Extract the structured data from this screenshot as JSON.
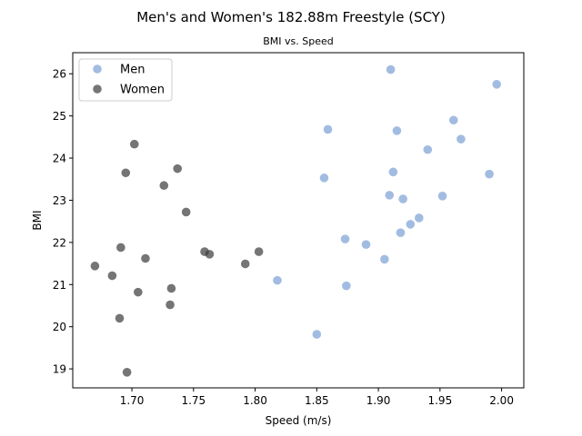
{
  "chart_data": {
    "type": "scatter",
    "title": "Men's and Women's 182.88m Freestyle (SCY)",
    "subtitle": "BMI vs. Speed",
    "xlabel": "Speed (m/s)",
    "ylabel": "BMI",
    "xlim": [
      1.652,
      2.018
    ],
    "ylim": [
      18.55,
      26.5
    ],
    "xticks": [
      1.7,
      1.75,
      1.8,
      1.85,
      1.9,
      1.95,
      2.0
    ],
    "xtick_labels": [
      "1.70",
      "1.75",
      "1.80",
      "1.85",
      "1.90",
      "1.95",
      "2.00"
    ],
    "yticks": [
      19,
      20,
      21,
      22,
      23,
      24,
      25,
      26
    ],
    "ytick_labels": [
      "19",
      "20",
      "21",
      "22",
      "23",
      "24",
      "25",
      "26"
    ],
    "grid": false,
    "legend_position": "upper-left",
    "series": [
      {
        "name": "Men",
        "color": "#7aa0d4",
        "points": [
          {
            "x": 1.91,
            "y": 26.1
          },
          {
            "x": 1.996,
            "y": 25.75
          },
          {
            "x": 1.961,
            "y": 24.9
          },
          {
            "x": 1.859,
            "y": 24.68
          },
          {
            "x": 1.915,
            "y": 24.65
          },
          {
            "x": 1.967,
            "y": 24.45
          },
          {
            "x": 1.94,
            "y": 24.2
          },
          {
            "x": 1.912,
            "y": 23.67
          },
          {
            "x": 1.99,
            "y": 23.62
          },
          {
            "x": 1.856,
            "y": 23.53
          },
          {
            "x": 1.909,
            "y": 23.12
          },
          {
            "x": 1.952,
            "y": 23.1
          },
          {
            "x": 1.92,
            "y": 23.03
          },
          {
            "x": 1.933,
            "y": 22.58
          },
          {
            "x": 1.926,
            "y": 22.43
          },
          {
            "x": 1.918,
            "y": 22.23
          },
          {
            "x": 1.873,
            "y": 22.08
          },
          {
            "x": 1.89,
            "y": 21.95
          },
          {
            "x": 1.905,
            "y": 21.6
          },
          {
            "x": 1.818,
            "y": 21.1
          },
          {
            "x": 1.874,
            "y": 20.97
          },
          {
            "x": 1.85,
            "y": 19.82
          }
        ]
      },
      {
        "name": "Women",
        "color": "#3a3a3a",
        "points": [
          {
            "x": 1.702,
            "y": 24.33
          },
          {
            "x": 1.737,
            "y": 23.75
          },
          {
            "x": 1.695,
            "y": 23.65
          },
          {
            "x": 1.726,
            "y": 23.35
          },
          {
            "x": 1.744,
            "y": 22.72
          },
          {
            "x": 1.691,
            "y": 21.88
          },
          {
            "x": 1.759,
            "y": 21.78
          },
          {
            "x": 1.803,
            "y": 21.78
          },
          {
            "x": 1.763,
            "y": 21.72
          },
          {
            "x": 1.711,
            "y": 21.62
          },
          {
            "x": 1.792,
            "y": 21.49
          },
          {
            "x": 1.67,
            "y": 21.44
          },
          {
            "x": 1.684,
            "y": 21.21
          },
          {
            "x": 1.732,
            "y": 20.91
          },
          {
            "x": 1.705,
            "y": 20.82
          },
          {
            "x": 1.731,
            "y": 20.52
          },
          {
            "x": 1.69,
            "y": 20.2
          },
          {
            "x": 1.696,
            "y": 18.92
          }
        ]
      }
    ]
  }
}
